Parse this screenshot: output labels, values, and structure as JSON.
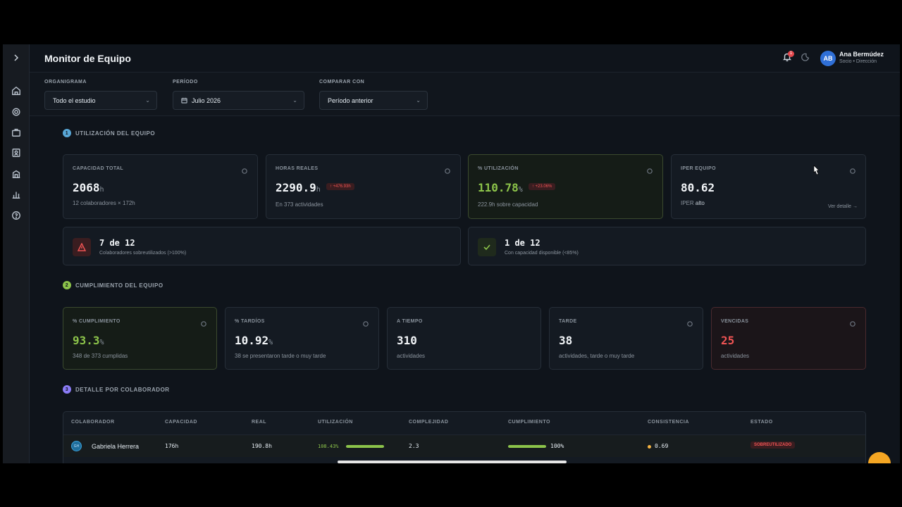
{
  "header": {
    "title": "Monitor de Equipo",
    "notification_count": "1",
    "user_initials": "AB",
    "user_name": "Ana Bermúdez",
    "user_role": "Socio • Dirección"
  },
  "filters": {
    "organigrama": {
      "label": "ORGANIGRAMA",
      "value": "Todo el estudio"
    },
    "periodo": {
      "label": "PERÍODO",
      "value": "Julio 2026"
    },
    "comparar": {
      "label": "COMPARAR CON",
      "value": "Período anterior"
    }
  },
  "utilizacion": {
    "section_number": "1",
    "section_title": "UTILIZACIÓN DEL EQUIPO",
    "capacidad": {
      "label": "CAPACIDAD TOTAL",
      "value": "2068",
      "unit": "h",
      "sub": "12 colaboradores × 172h"
    },
    "horas": {
      "label": "HORAS REALES",
      "value": "2290.9",
      "unit": "h",
      "delta": "↑ +476.93h",
      "sub": "En 373 actividades"
    },
    "utilizacion": {
      "label": "% UTILIZACIÓN",
      "value": "110.78",
      "unit": "%",
      "delta": "↑ +23.06%",
      "sub": "222.9h sobre capacidad"
    },
    "iper": {
      "label": "IPER EQUIPO",
      "value": "80.62",
      "sub_prefix": "IPER",
      "sub_level": "alto",
      "link": "Ver detalle →"
    },
    "alert_over": {
      "title": "7 de 12",
      "sub": "Colaboradores sobreutilizados (>100%)"
    },
    "alert_avail": {
      "title": "1 de 12",
      "sub": "Con capacidad disponible (<85%)"
    }
  },
  "cumplimiento": {
    "section_number": "2",
    "section_title": "CUMPLIMIENTO DEL EQUIPO",
    "pct": {
      "label": "% CUMPLIMIENTO",
      "value": "93.3",
      "unit": "%",
      "sub": "348 de 373 cumplidas"
    },
    "tardios": {
      "label": "% TARDÍOS",
      "value": "10.92",
      "unit": "%",
      "sub": "38 se presentaron tarde o muy tarde"
    },
    "a_tiempo": {
      "label": "A TIEMPO",
      "value": "310",
      "sub": "actividades"
    },
    "tarde": {
      "label": "TARDE",
      "value": "38",
      "sub": "actividades, tarde o muy tarde"
    },
    "vencidas": {
      "label": "VENCIDAS",
      "value": "25",
      "sub": "actividades"
    }
  },
  "detalle": {
    "section_number": "3",
    "section_title": "DETALLE POR COLABORADOR",
    "columns": [
      "COLABORADOR",
      "CAPACIDAD",
      "REAL",
      "UTILIZACIÓN",
      "COMPLEJIDAD",
      "CUMPLIMIENTO",
      "CONSISTENCIA",
      "ESTADO"
    ],
    "rows": [
      {
        "initials": "GH",
        "name": "Gabriela Herrera",
        "capacidad": "176h",
        "real": "190.8h",
        "utilizacion": "108.43%",
        "utilizacion_fraction": 1.0,
        "complejidad": "2.3",
        "cumplimiento": "100%",
        "cumplimiento_fraction": 1.0,
        "consistencia": "0.69",
        "estado": "SOBREUTILIZADO"
      }
    ]
  },
  "colors": {
    "accent_green": "#8cc34a",
    "danger": "#f05454",
    "warning": "#f5b342"
  }
}
